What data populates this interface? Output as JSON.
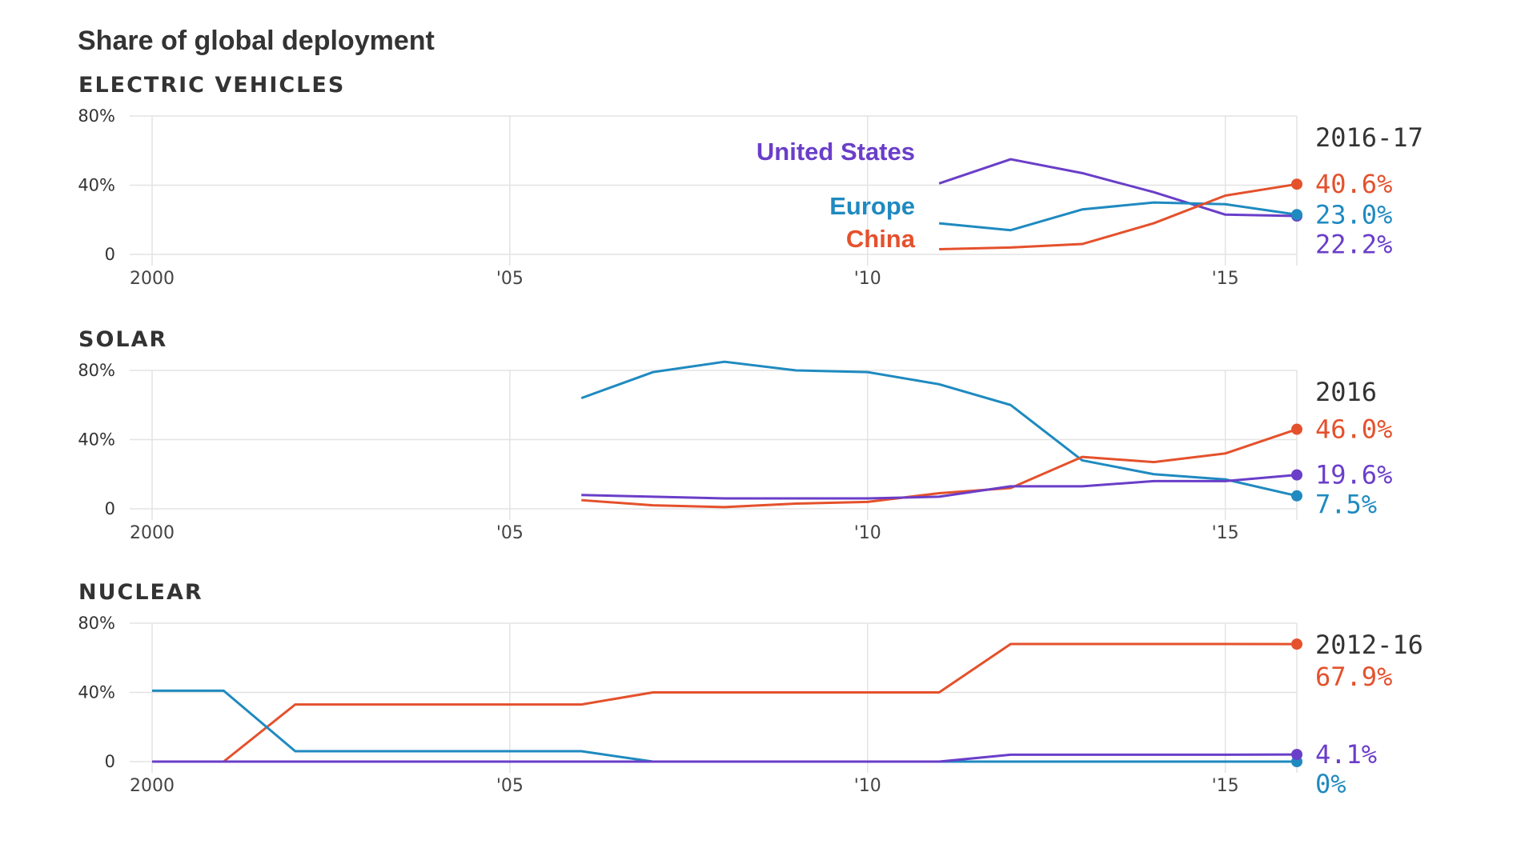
{
  "title": "Share of global deployment",
  "colors": {
    "China": "#e4512c",
    "Europe": "#1f8ac0",
    "United States": "#6a3ec9"
  },
  "chart_data": [
    {
      "type": "line",
      "title": "ELECTRIC VEHICLES",
      "xlim": [
        2000,
        2016
      ],
      "ylim": [
        0,
        80
      ],
      "y_ticks": [
        {
          "value": 0,
          "label": "0"
        },
        {
          "value": 40,
          "label": "40%"
        },
        {
          "value": 80,
          "label": "80%"
        }
      ],
      "x_ticks": [
        {
          "value": 2000,
          "label": "2000"
        },
        {
          "value": 2005,
          "label": "'05"
        },
        {
          "value": 2010,
          "label": "'10"
        },
        {
          "value": 2015,
          "label": "'15"
        }
      ],
      "grid": true,
      "end_period": "2016-17",
      "legend": [
        {
          "name": "United States",
          "label": "United States"
        },
        {
          "name": "Europe",
          "label": "Europe"
        },
        {
          "name": "China",
          "label": "China"
        }
      ],
      "series": [
        {
          "name": "United States",
          "x": [
            2011,
            2012,
            2013,
            2014,
            2015,
            2016
          ],
          "values": [
            41,
            55,
            47,
            36,
            23,
            22.2
          ],
          "end_label": "22.2%"
        },
        {
          "name": "Europe",
          "x": [
            2011,
            2012,
            2013,
            2014,
            2015,
            2016
          ],
          "values": [
            18,
            14,
            26,
            30,
            29,
            23.0
          ],
          "end_label": "23.0%"
        },
        {
          "name": "China",
          "x": [
            2011,
            2012,
            2013,
            2014,
            2015,
            2016
          ],
          "values": [
            3,
            4,
            6,
            18,
            34,
            40.6
          ],
          "end_label": "40.6%"
        }
      ]
    },
    {
      "type": "line",
      "title": "SOLAR",
      "xlim": [
        2000,
        2016
      ],
      "ylim": [
        0,
        80
      ],
      "y_ticks": [
        {
          "value": 0,
          "label": "0"
        },
        {
          "value": 40,
          "label": "40%"
        },
        {
          "value": 80,
          "label": "80%"
        }
      ],
      "x_ticks": [
        {
          "value": 2000,
          "label": "2000"
        },
        {
          "value": 2005,
          "label": "'05"
        },
        {
          "value": 2010,
          "label": "'10"
        },
        {
          "value": 2015,
          "label": "'15"
        }
      ],
      "grid": true,
      "end_period": "2016",
      "series": [
        {
          "name": "Europe",
          "x": [
            2006,
            2007,
            2008,
            2009,
            2010,
            2011,
            2012,
            2013,
            2014,
            2015,
            2016
          ],
          "values": [
            64,
            79,
            85,
            80,
            79,
            72,
            60,
            28,
            20,
            17,
            7.5
          ],
          "end_label": "7.5%"
        },
        {
          "name": "China",
          "x": [
            2006,
            2007,
            2008,
            2009,
            2010,
            2011,
            2012,
            2013,
            2014,
            2015,
            2016
          ],
          "values": [
            5,
            2,
            1,
            3,
            4,
            9,
            12,
            30,
            27,
            32,
            46.0
          ],
          "end_label": "46.0%"
        },
        {
          "name": "United States",
          "x": [
            2006,
            2007,
            2008,
            2009,
            2010,
            2011,
            2012,
            2013,
            2014,
            2015,
            2016
          ],
          "values": [
            8,
            7,
            6,
            6,
            6,
            7,
            13,
            13,
            16,
            16,
            19.6
          ],
          "end_label": "19.6%"
        }
      ]
    },
    {
      "type": "line",
      "title": "NUCLEAR",
      "xlim": [
        2000,
        2016
      ],
      "ylim": [
        0,
        80
      ],
      "y_ticks": [
        {
          "value": 0,
          "label": "0"
        },
        {
          "value": 40,
          "label": "40%"
        },
        {
          "value": 80,
          "label": "80%"
        }
      ],
      "x_ticks": [
        {
          "value": 2000,
          "label": "2000"
        },
        {
          "value": 2005,
          "label": "'05"
        },
        {
          "value": 2010,
          "label": "'10"
        },
        {
          "value": 2015,
          "label": "'15"
        }
      ],
      "grid": true,
      "end_period": "2012-16",
      "series": [
        {
          "name": "China",
          "x": [
            2000,
            2001,
            2002,
            2003,
            2004,
            2005,
            2006,
            2007,
            2008,
            2009,
            2010,
            2011,
            2012,
            2013,
            2014,
            2015,
            2016
          ],
          "values": [
            0,
            0,
            33,
            33,
            33,
            33,
            33,
            40,
            40,
            40,
            40,
            40,
            68,
            68,
            68,
            68,
            67.9
          ],
          "end_label": "67.9%"
        },
        {
          "name": "Europe",
          "x": [
            2000,
            2001,
            2002,
            2003,
            2004,
            2005,
            2006,
            2007,
            2008,
            2009,
            2010,
            2011,
            2012,
            2013,
            2014,
            2015,
            2016
          ],
          "values": [
            41,
            41,
            6,
            6,
            6,
            6,
            6,
            0,
            0,
            0,
            0,
            0,
            0,
            0,
            0,
            0,
            0
          ],
          "end_label": "0%"
        },
        {
          "name": "United States",
          "x": [
            2000,
            2001,
            2002,
            2003,
            2004,
            2005,
            2006,
            2007,
            2008,
            2009,
            2010,
            2011,
            2012,
            2013,
            2014,
            2015,
            2016
          ],
          "values": [
            0,
            0,
            0,
            0,
            0,
            0,
            0,
            0,
            0,
            0,
            0,
            0,
            4,
            4,
            4,
            4,
            4.1
          ],
          "end_label": "4.1%"
        }
      ]
    }
  ]
}
